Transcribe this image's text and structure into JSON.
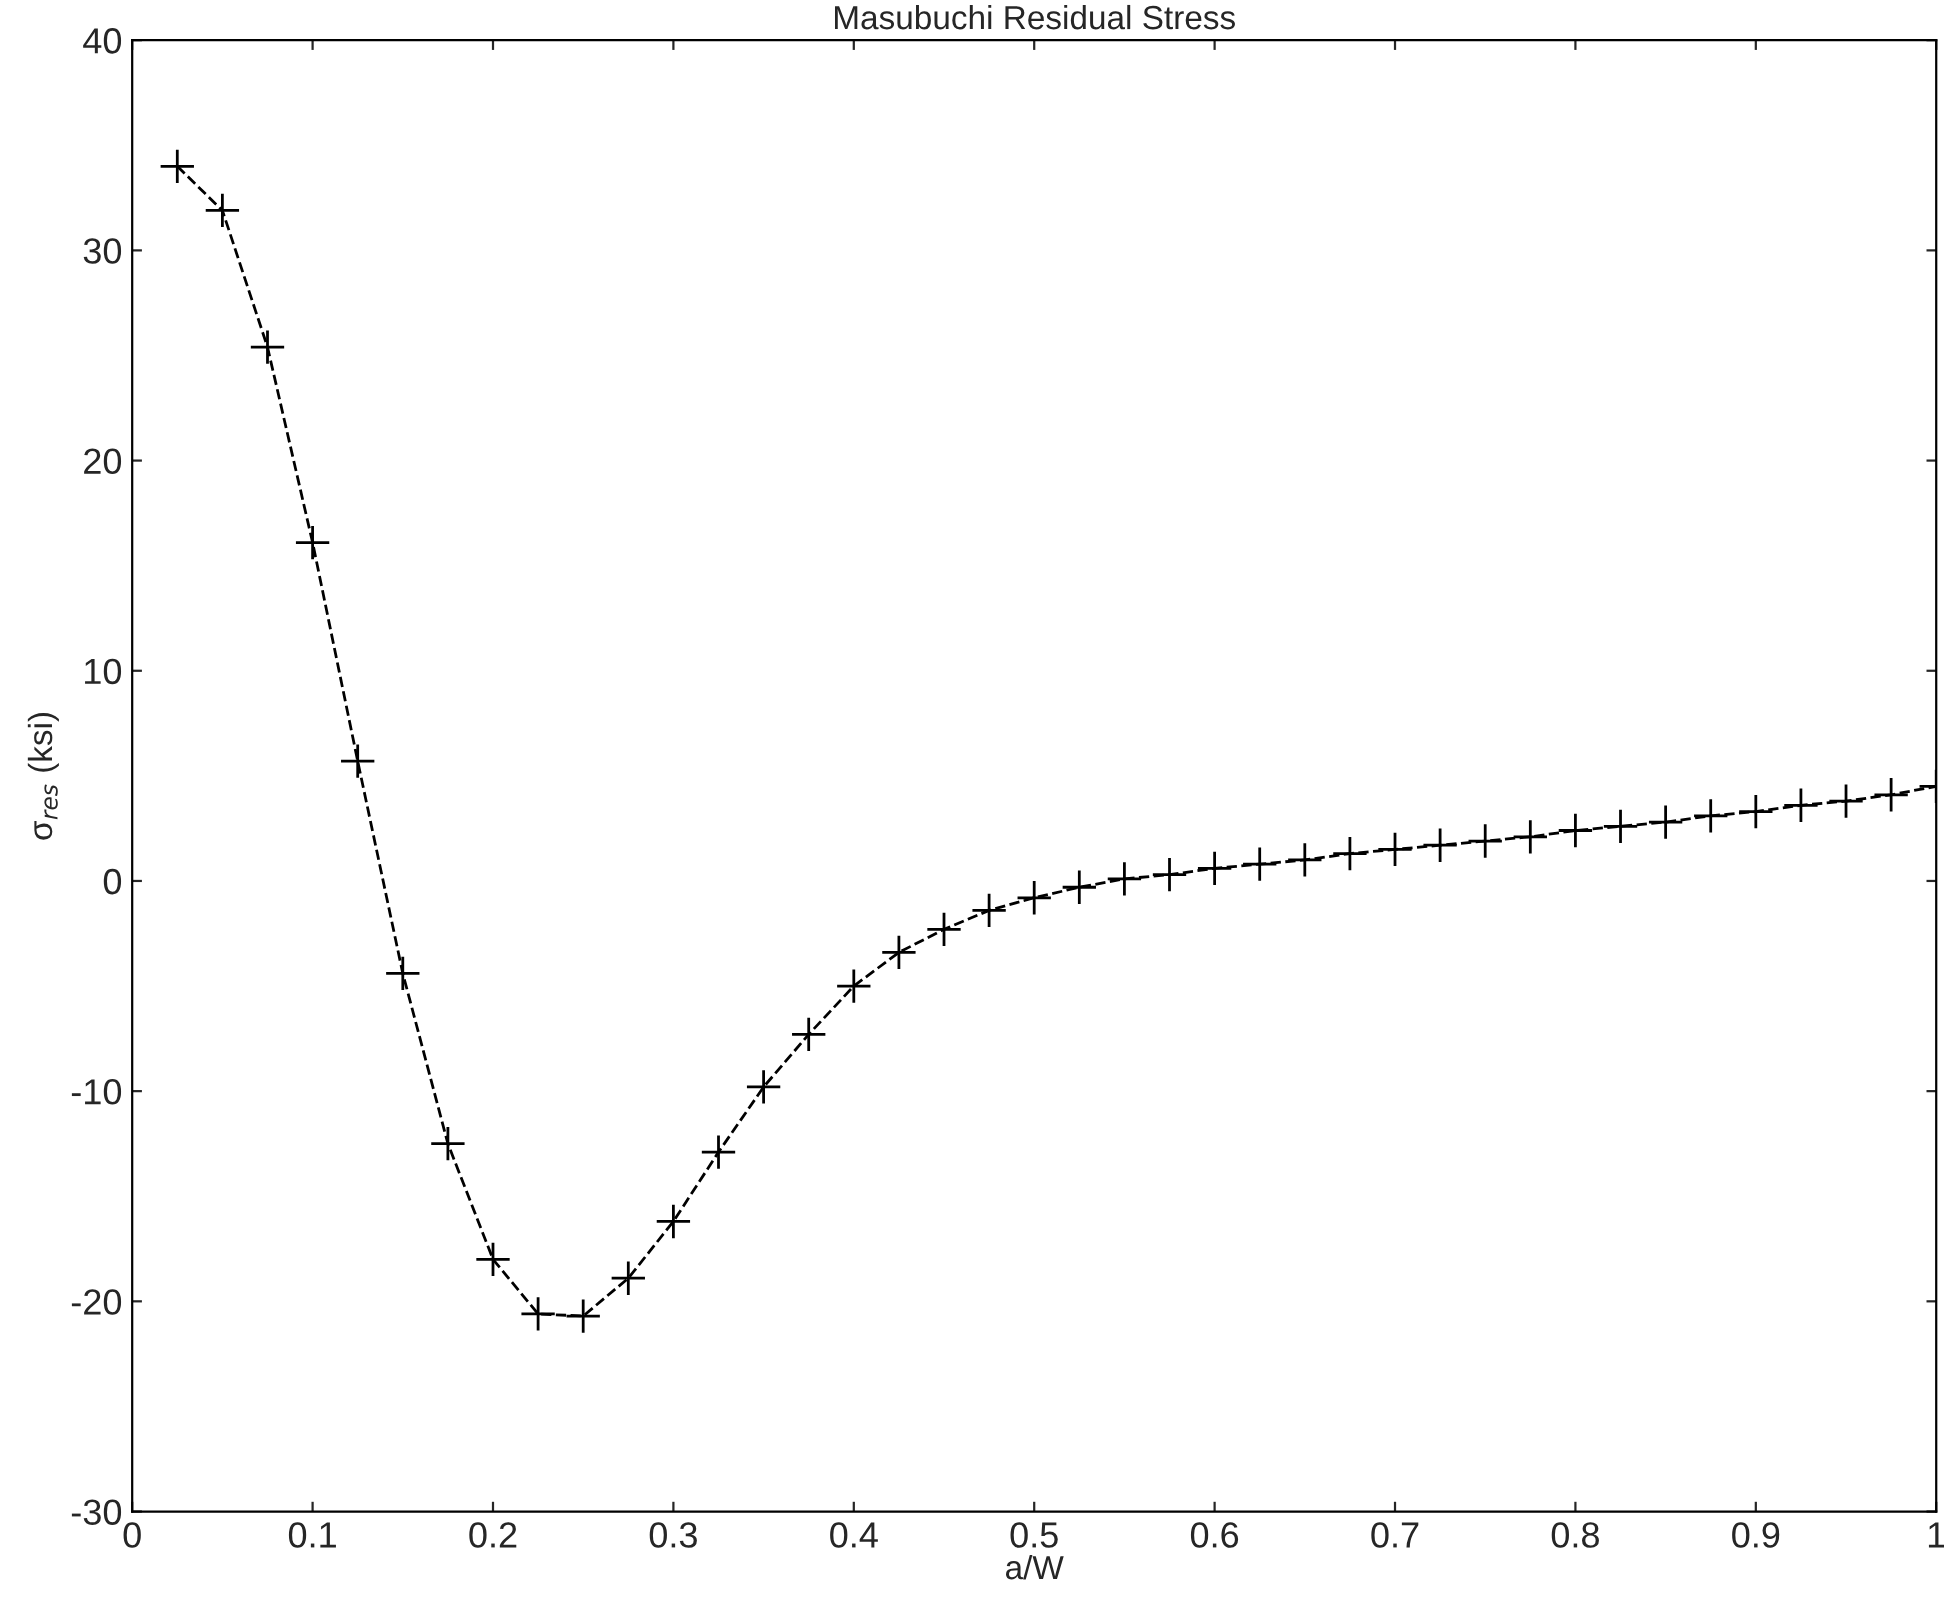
{
  "chart_data": {
    "type": "line",
    "title": "Masubuchi Residual Stress",
    "xlabel": "a/W",
    "ylabel": "σ$_{res}$ (ksi)",
    "x": [
      0.025,
      0.05,
      0.075,
      0.1,
      0.125,
      0.15,
      0.175,
      0.2,
      0.225,
      0.25,
      0.275,
      0.3,
      0.325,
      0.35,
      0.375,
      0.4,
      0.425,
      0.45,
      0.475,
      0.5,
      0.525,
      0.55,
      0.575,
      0.6,
      0.625,
      0.65,
      0.675,
      0.7,
      0.725,
      0.75,
      0.775,
      0.8,
      0.825,
      0.85,
      0.875,
      0.9,
      0.925,
      0.95,
      0.975,
      1.0
    ],
    "series": [
      {
        "color": "#000000",
        "values": [
          34,
          31.9,
          25.4,
          16.1,
          5.7,
          -4.4,
          -12.5,
          -18,
          -20.6,
          -20.7,
          -18.9,
          -16.2,
          -12.9,
          -9.8,
          -7.3,
          -5.0,
          -3.4,
          -2.3,
          -1.4,
          -0.8,
          -0.3,
          0.1,
          0.3,
          0.6,
          0.8,
          1.0,
          1.3,
          1.5,
          1.7,
          1.9,
          2.1,
          2.4,
          2.6,
          2.8,
          3.1,
          3.3,
          3.6,
          3.8,
          4.1,
          4.5
        ]
      }
    ],
    "marker": "cross",
    "line_style": "dashed",
    "xlim": [
      0,
      1
    ],
    "xticks": [
      0,
      0.1,
      0.2,
      0.3,
      0.4,
      0.5,
      0.6,
      0.7,
      0.8,
      0.9,
      1
    ],
    "ylim": [
      -30,
      40
    ],
    "yticks": [
      -30,
      -20,
      -10,
      0,
      10,
      20,
      30,
      40
    ]
  }
}
